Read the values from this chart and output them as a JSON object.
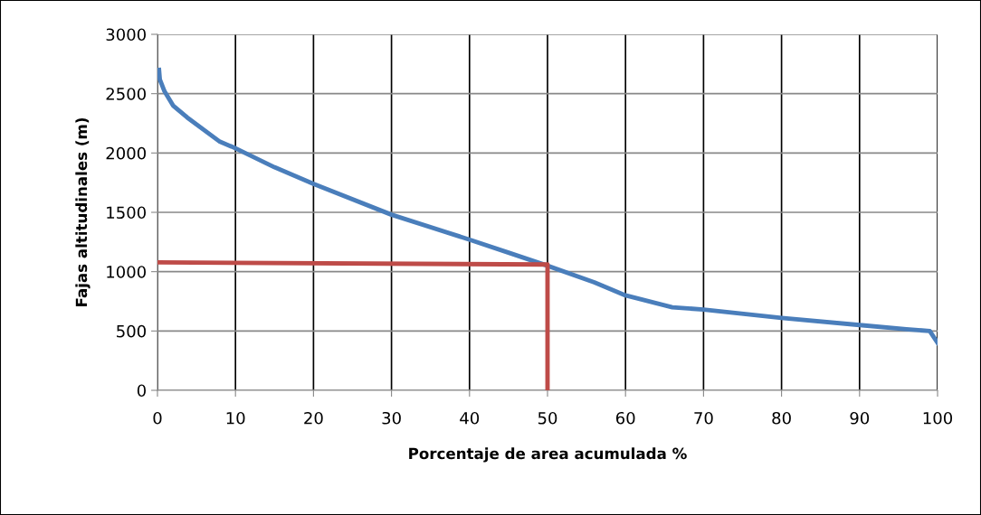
{
  "chart_data": {
    "type": "line",
    "xlabel": "Porcentaje de area acumulada %",
    "ylabel": "Fajas altitudinales (m)",
    "xlim": [
      0,
      100
    ],
    "xticks": [
      0,
      10,
      20,
      30,
      40,
      50,
      60,
      70,
      80,
      90,
      100
    ],
    "ylim": [
      0,
      3000
    ],
    "yticks": [
      0,
      500,
      1000,
      1500,
      2000,
      2500,
      3000
    ],
    "grid": true,
    "marker": "none",
    "line_style": "solid",
    "series": [
      {
        "color": "#4a7ebb",
        "x": [
          0.2,
          0.3,
          0.9,
          2,
          3.8,
          8,
          10,
          15,
          20,
          30,
          40,
          45,
          50,
          56,
          60,
          66,
          70,
          80,
          90,
          96,
          99,
          100
        ],
        "values": [
          2700,
          2620,
          2520,
          2400,
          2300,
          2095,
          2040,
          1880,
          1740,
          1480,
          1270,
          1160,
          1050,
          910,
          800,
          700,
          680,
          610,
          550,
          515,
          500,
          400
        ]
      },
      {
        "color": "#be4b48",
        "x": [
          0,
          50,
          50
        ],
        "values": [
          1078,
          1060,
          0
        ]
      }
    ]
  }
}
